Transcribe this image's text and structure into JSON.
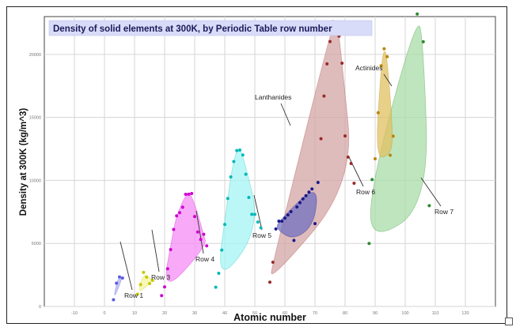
{
  "chart_data": {
    "type": "scatter",
    "title": "Density of solid elements at 300K, by Periodic Table row number",
    "xlabel": "Atomic number",
    "ylabel": "Density at 300K (kg/m^3)",
    "xlim": [
      -20,
      130
    ],
    "ylim": [
      0,
      23000
    ],
    "x_ticks": [
      -10,
      0,
      10,
      20,
      30,
      40,
      50,
      60,
      70,
      80,
      90,
      100,
      110,
      120
    ],
    "y_ticks": [
      0,
      5000,
      10000,
      15000,
      20000
    ],
    "grid": true,
    "series": [
      {
        "name": "Row 1",
        "color": "#5a5ae0",
        "fill": "#b3b3f2",
        "x": [
          3,
          4,
          5,
          6
        ],
        "y": [
          530,
          1850,
          2340,
          2260
        ]
      },
      {
        "name": "Row 3",
        "color": "#c8c800",
        "fill": "#f4f4a0",
        "x": [
          11,
          12,
          13,
          14,
          15,
          16
        ],
        "y": [
          970,
          1740,
          2700,
          2330,
          1820,
          2070
        ]
      },
      {
        "name": "Row 4",
        "color": "#d000d0",
        "fill": "#f58ef5",
        "x": [
          19,
          20,
          21,
          22,
          23,
          24,
          25,
          26,
          27,
          28,
          29,
          30,
          31,
          32,
          33,
          34
        ],
        "y": [
          860,
          1550,
          2990,
          4510,
          6110,
          7190,
          7440,
          7870,
          8900,
          8910,
          8960,
          7140,
          5910,
          5320,
          5730,
          4810
        ]
      },
      {
        "name": "Row 5",
        "color": "#00b8b8",
        "fill": "#a6f4f4",
        "x": [
          37,
          38,
          39,
          40,
          41,
          42,
          43,
          44,
          45,
          46,
          47,
          48,
          49,
          50,
          51,
          52
        ],
        "y": [
          1530,
          2630,
          4470,
          6510,
          8570,
          10280,
          11500,
          12370,
          12410,
          12020,
          10490,
          8650,
          7310,
          7310,
          6700,
          6240
        ]
      },
      {
        "name": "Row 6",
        "color": "#9a2a2a",
        "fill": "#d4a6a6",
        "x": [
          55,
          56,
          72,
          73,
          74,
          75,
          76,
          77,
          78,
          79,
          80,
          81,
          82,
          83
        ],
        "y": [
          1930,
          3510,
          13310,
          16690,
          19250,
          21020,
          22590,
          22560,
          21450,
          19300,
          13530,
          11850,
          11340,
          9780
        ]
      },
      {
        "name": "Lanthanides",
        "color": "#1a1a8a",
        "fill": "#7070c0",
        "x": [
          57,
          58,
          59,
          60,
          61,
          62,
          63,
          64,
          65,
          66,
          67,
          68,
          69,
          70,
          71
        ],
        "y": [
          6150,
          6770,
          6770,
          7010,
          7260,
          7520,
          5240,
          7900,
          8230,
          8540,
          8790,
          9070,
          9320,
          6570,
          9840
        ]
      },
      {
        "name": "Row 7",
        "color": "#2a8a2a",
        "fill": "#a8dca8",
        "x": [
          88,
          89,
          104,
          106,
          108
        ],
        "y": [
          5000,
          10070,
          23200,
          21000,
          8000
        ]
      },
      {
        "name": "Actinides",
        "color": "#b8860b",
        "fill": "#e0c060",
        "x": [
          90,
          91,
          92,
          93,
          94,
          95,
          96
        ],
        "y": [
          11720,
          15370,
          19100,
          20450,
          19820,
          12000,
          13510
        ]
      }
    ],
    "annotations": [
      "Row 1",
      "Row 3",
      "Row 4",
      "Row 5",
      "Row 6",
      "Row 7",
      "Lanthanides",
      "Actinides"
    ]
  }
}
